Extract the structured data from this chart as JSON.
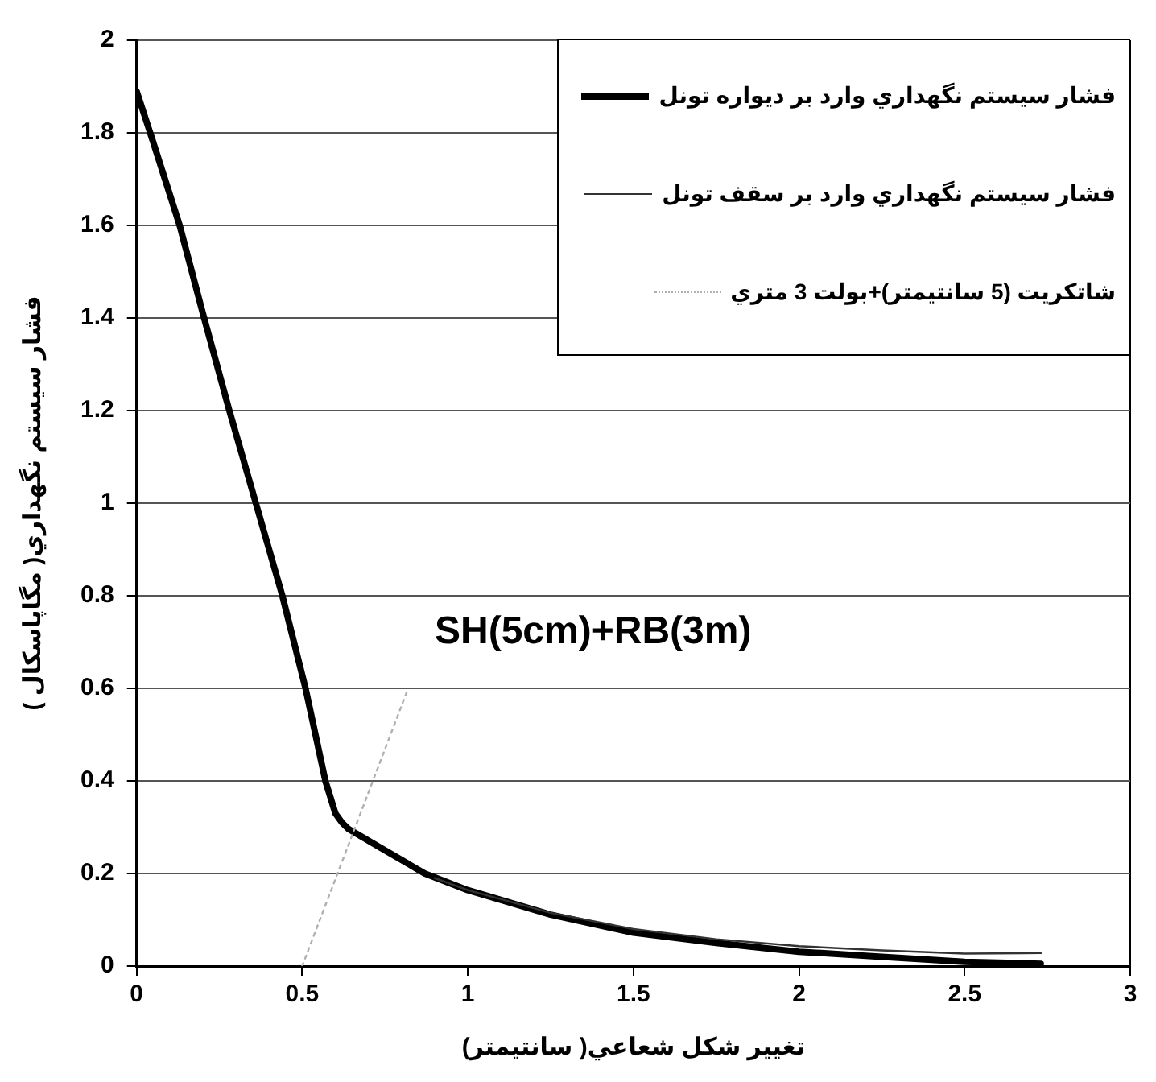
{
  "chart_data": {
    "type": "line",
    "xlabel": "تغيير شكل شعاعي( سانتيمتر)",
    "ylabel": "فشار سيستم نگهداري( مگاپاسكال )",
    "xlim": [
      0,
      3
    ],
    "ylim": [
      0,
      2
    ],
    "xticks": [
      0,
      0.5,
      1,
      1.5,
      2,
      2.5,
      3
    ],
    "yticks": [
      0,
      0.2,
      0.4,
      0.6,
      0.8,
      1,
      1.2,
      1.4,
      1.6,
      1.8,
      2
    ],
    "grid": "y",
    "legend": "top right",
    "marker": "none",
    "annotations": [
      "SH(5cm)+RB(3m)"
    ],
    "series": [
      {
        "name": "فشار سيستم نگهداري وارد بر ديواره تونل",
        "color": "#000000",
        "line_style": "solid",
        "x": [
          0,
          0.05,
          0.13,
          0.2,
          0.28,
          0.36,
          0.44,
          0.51,
          0.57,
          0.6,
          0.62,
          0.64,
          0.75,
          0.87,
          1,
          1.25,
          1.5,
          1.75,
          2,
          2.25,
          2.5,
          2.73
        ],
        "values": [
          1.89,
          1.78,
          1.6,
          1.41,
          1.2,
          1,
          0.8,
          0.6,
          0.4,
          0.33,
          0.31,
          0.296,
          0.25,
          0.2,
          0.164,
          0.111,
          0.072,
          0.05,
          0.031,
          0.02,
          0.009,
          0.005
        ]
      },
      {
        "name": "فشار سيستم نگهداري وارد بر سقف تونل",
        "color": "#333333",
        "line_style": "solid",
        "x": [
          0.9,
          1,
          1.25,
          1.5,
          1.75,
          2,
          2.25,
          2.5,
          2.73
        ],
        "values": [
          0.19,
          0.164,
          0.115,
          0.08,
          0.058,
          0.043,
          0.034,
          0.027,
          0.028
        ]
      },
      {
        "name": "شاتكريت (5 سانتيمتر)+بولت 3 متري",
        "color": "#b0b0b0",
        "line_style": "dotted",
        "x": [
          0.5,
          0.82
        ],
        "values": [
          0,
          0.6
        ]
      }
    ]
  }
}
